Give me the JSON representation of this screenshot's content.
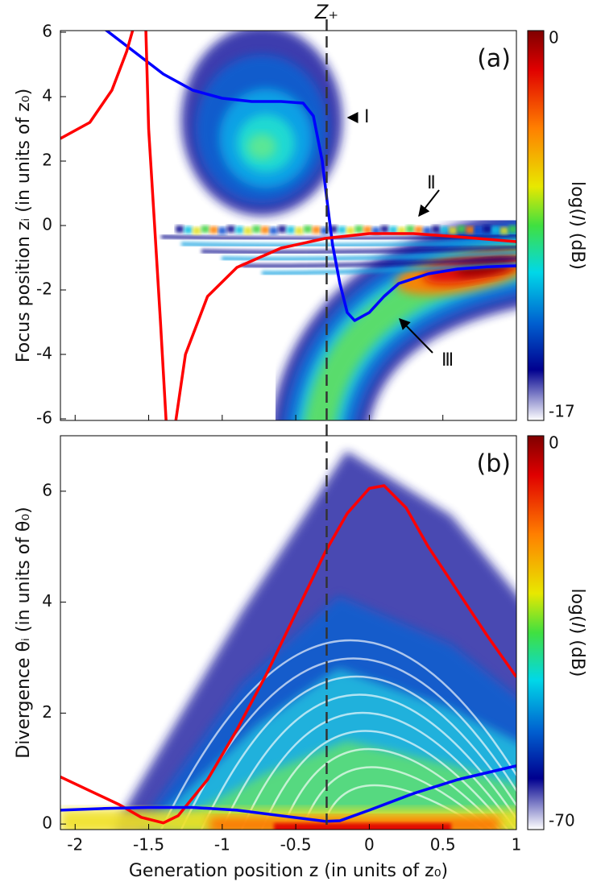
{
  "chart_data": [
    {
      "type": "line",
      "label": "(a)",
      "ylabel": "Focus position zᵢ (in units of z₀)",
      "xlim": [
        -2.1,
        1.0
      ],
      "ylim": [
        -6.05,
        6.05
      ],
      "xticks": [
        -2,
        -1.5,
        -1,
        -0.5,
        0,
        0.5,
        1
      ],
      "show_xtick_labels": false,
      "yticks": [
        -6,
        -4,
        -2,
        0,
        2,
        4,
        6
      ],
      "vline": -0.29,
      "vline_label": "Z₊",
      "annotations": [
        "Ⅰ",
        "Ⅱ",
        "Ⅲ"
      ],
      "colorbar": {
        "label": "log(𝐼) (dB)",
        "ticks": [
          0,
          -17
        ]
      },
      "series": [
        {
          "color": "#0000ff",
          "x": [
            -1.8,
            -1.6,
            -1.4,
            -1.2,
            -1.0,
            -0.8,
            -0.6,
            -0.45,
            -0.38,
            -0.32,
            -0.28,
            -0.25,
            -0.2,
            -0.15,
            -0.1,
            0,
            0.1,
            0.2,
            0.4,
            0.6,
            0.8,
            1.0
          ],
          "values": [
            6.1,
            5.4,
            4.7,
            4.2,
            3.95,
            3.85,
            3.85,
            3.8,
            3.4,
            2,
            0.5,
            -0.6,
            -1.8,
            -2.7,
            -2.95,
            -2.7,
            -2.2,
            -1.8,
            -1.5,
            -1.35,
            -1.28,
            -1.25
          ]
        },
        {
          "color": "#ff0000",
          "x": [
            -2.1,
            -1.9,
            -1.75,
            -1.65,
            -1.6,
            null,
            -1.52,
            -1.5,
            -1.46,
            -1.42,
            -1.38,
            null,
            -1.32,
            -1.25,
            -1.1,
            -0.9,
            -0.6,
            -0.3,
            0,
            0.3,
            0.6,
            1.0
          ],
          "values": [
            2.7,
            3.2,
            4.2,
            5.4,
            6.2,
            null,
            6.2,
            3,
            0,
            -3,
            -6.2,
            null,
            -6.2,
            -4,
            -2.2,
            -1.3,
            -0.7,
            -0.4,
            -0.25,
            -0.25,
            -0.35,
            -0.5
          ]
        }
      ]
    },
    {
      "type": "line",
      "label": "(b)",
      "ylabel": "Divergence θᵢ (in units of θ₀)",
      "xlabel": "Generation position z (in units of z₀)",
      "xlim": [
        -2.1,
        1.0
      ],
      "ylim": [
        -0.1,
        7.0
      ],
      "xticks": [
        -2,
        -1.5,
        -1,
        -0.5,
        0,
        0.5,
        1
      ],
      "show_xtick_labels": true,
      "yticks": [
        0,
        2,
        4,
        6
      ],
      "vline": -0.29,
      "colorbar": {
        "label": "log(𝐼) (dB)",
        "ticks": [
          0,
          -70
        ]
      },
      "series": [
        {
          "color": "#ff0000",
          "x": [
            -2.1,
            -1.9,
            -1.7,
            -1.55,
            -1.4,
            -1.3,
            -1.1,
            -0.9,
            -0.7,
            -0.5,
            -0.3,
            -0.15,
            0,
            0.1,
            0.25,
            0.4,
            0.6,
            0.8,
            1.0
          ],
          "values": [
            0.85,
            0.6,
            0.35,
            0.12,
            0.02,
            0.15,
            0.8,
            1.7,
            2.7,
            3.8,
            4.9,
            5.6,
            6.05,
            6.1,
            5.7,
            5.0,
            4.2,
            3.4,
            2.65
          ]
        },
        {
          "color": "#0000ff",
          "x": [
            -2.1,
            -1.8,
            -1.5,
            -1.2,
            -0.9,
            -0.6,
            -0.3,
            -0.2,
            0,
            0.3,
            0.6,
            1.0
          ],
          "values": [
            0.25,
            0.28,
            0.3,
            0.3,
            0.25,
            0.15,
            0.05,
            0.06,
            0.25,
            0.55,
            0.8,
            1.05
          ]
        }
      ]
    }
  ]
}
